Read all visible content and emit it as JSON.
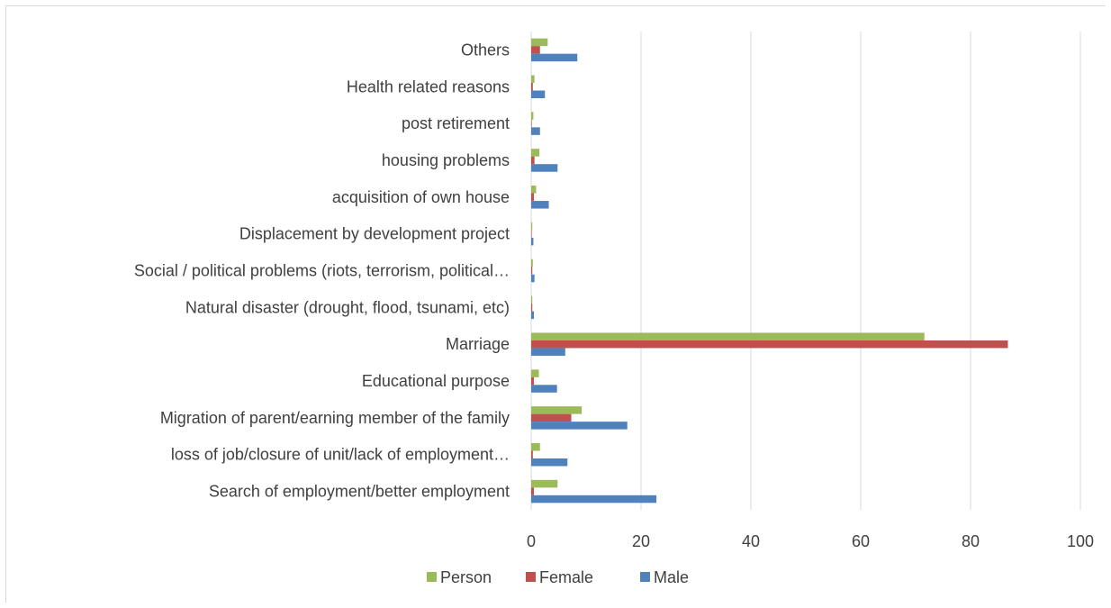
{
  "chart_data": {
    "type": "bar",
    "orientation": "horizontal",
    "categories": [
      "Search of employment/better employment",
      "loss of job/closure of unit/lack of employment…",
      "Migration of parent/earning member of the family",
      "Educational purpose",
      "Marriage",
      "Natural disaster (drought, flood, tsunami, etc)",
      "Social / political problems (riots, terrorism, political…",
      "Displacement by development project",
      "acquisition of own house",
      "housing problems",
      "post retirement",
      "Health related reasons",
      "Others"
    ],
    "series": [
      {
        "name": "Person",
        "color": "#9bbb59",
        "values": [
          4.8,
          1.6,
          9.2,
          1.4,
          71.6,
          0.2,
          0.3,
          0.2,
          0.9,
          1.5,
          0.4,
          0.6,
          3.0
        ]
      },
      {
        "name": "Female",
        "color": "#c0504d",
        "values": [
          0.5,
          0.3,
          7.3,
          0.5,
          86.8,
          0.2,
          0.2,
          0.1,
          0.5,
          0.6,
          0.1,
          0.3,
          1.6
        ]
      },
      {
        "name": "Male",
        "color": "#4f81bd",
        "values": [
          22.8,
          6.6,
          17.5,
          4.7,
          6.2,
          0.5,
          0.6,
          0.4,
          3.2,
          4.8,
          1.6,
          2.5,
          8.4
        ]
      }
    ],
    "xlim": [
      0,
      100
    ],
    "x_ticks": [
      0,
      20,
      40,
      60,
      80,
      100
    ],
    "grid": true,
    "legend": "bottom"
  }
}
